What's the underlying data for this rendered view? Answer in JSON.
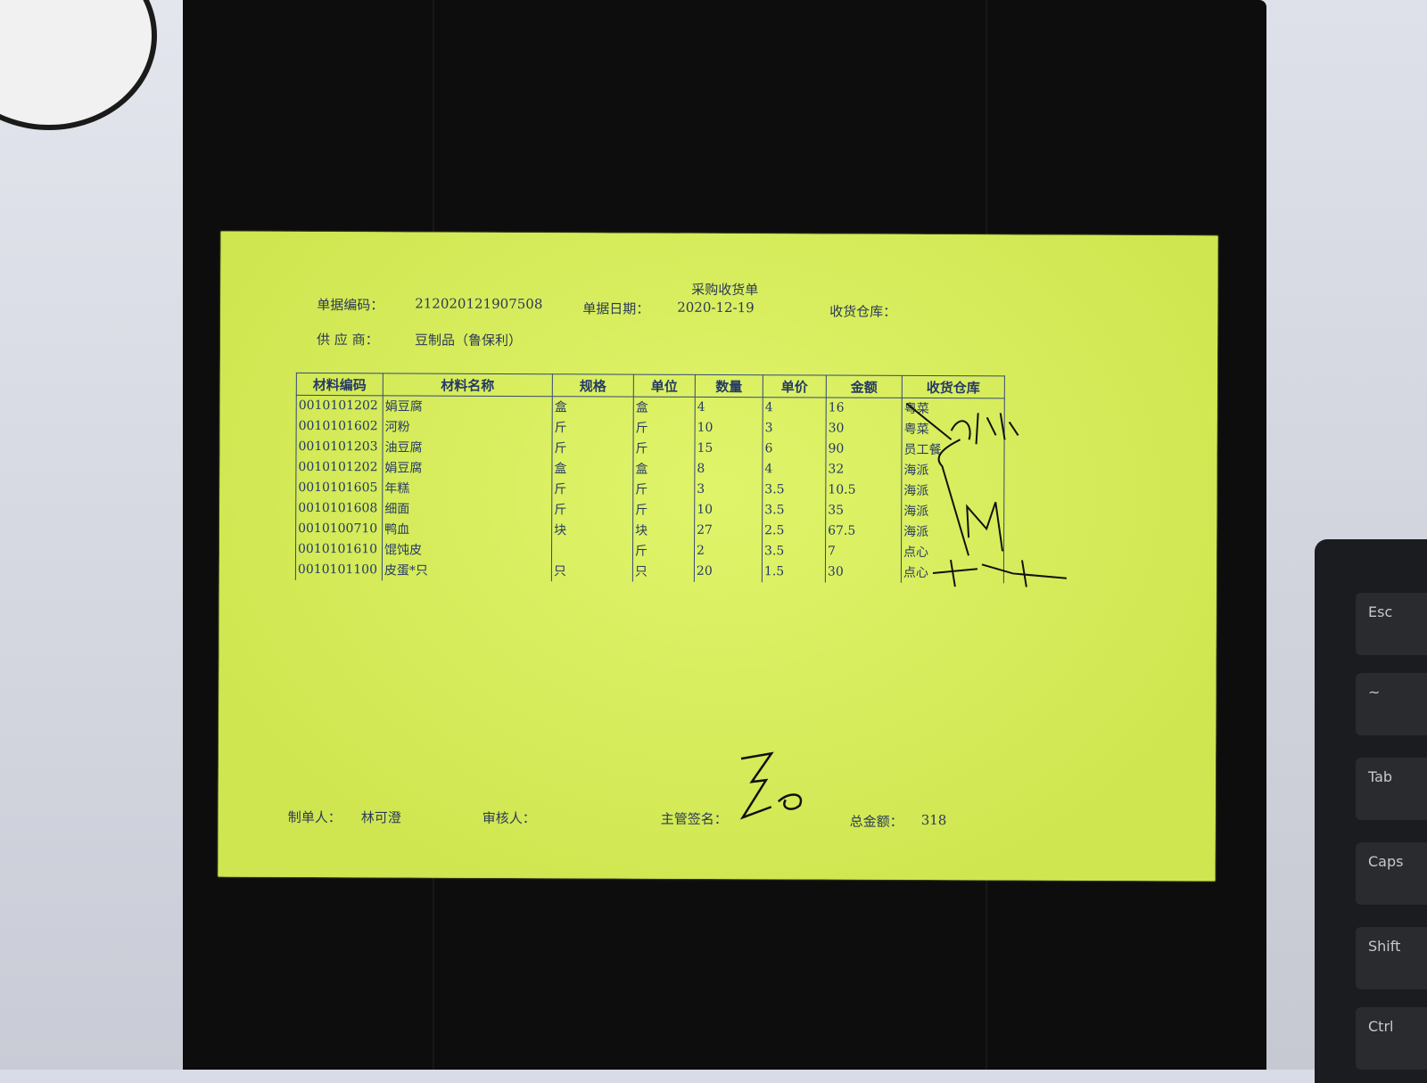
{
  "document": {
    "title": "采购收货单",
    "bill_no_label": "单据编码：",
    "bill_no": "212020121907508",
    "bill_date_label": "单据日期：",
    "bill_date": "2020-12-19",
    "warehouse_label": "收货仓库：",
    "supplier_label": "供 应 商：",
    "supplier": "豆制品（鲁保利）",
    "table": {
      "headers": [
        "材料编码",
        "材料名称",
        "规格",
        "单位",
        "数量",
        "单价",
        "金额",
        "收货仓库"
      ],
      "rows": [
        [
          "0010101202",
          "娟豆腐",
          "盒",
          "盒",
          "4",
          "4",
          "16",
          "粤菜"
        ],
        [
          "0010101602",
          "河粉",
          "斤",
          "斤",
          "10",
          "3",
          "30",
          "粤菜"
        ],
        [
          "0010101203",
          "油豆腐",
          "斤",
          "斤",
          "15",
          "6",
          "90",
          "员工餐"
        ],
        [
          "0010101202",
          "娟豆腐",
          "盒",
          "盒",
          "8",
          "4",
          "32",
          "海派"
        ],
        [
          "0010101605",
          "年糕",
          "斤",
          "斤",
          "3",
          "3.5",
          "10.5",
          "海派"
        ],
        [
          "0010101608",
          "细面",
          "斤",
          "斤",
          "10",
          "3.5",
          "35",
          "海派"
        ],
        [
          "0010100710",
          "鸭血",
          "块",
          "块",
          "27",
          "2.5",
          "67.5",
          "海派"
        ],
        [
          "0010101610",
          "馄饨皮",
          "",
          "斤",
          "2",
          "3.5",
          "7",
          "点心"
        ],
        [
          "0010101100",
          "皮蛋*只",
          "只",
          "只",
          "20",
          "1.5",
          "30",
          "点心"
        ]
      ]
    },
    "maker_label": "制单人：",
    "maker": "林可澄",
    "reviewer_label": "审核人：",
    "supervisor_label": "主管签名：",
    "total_label": "总金额：",
    "total": "318"
  },
  "keyboard": {
    "keys": [
      "Esc",
      "~",
      "Tab",
      "Caps",
      "Shift",
      "Ctrl"
    ]
  },
  "colors": {
    "paper": "#d8ee5a",
    "ink": "#263a66",
    "tray": "#0d0d0d"
  }
}
